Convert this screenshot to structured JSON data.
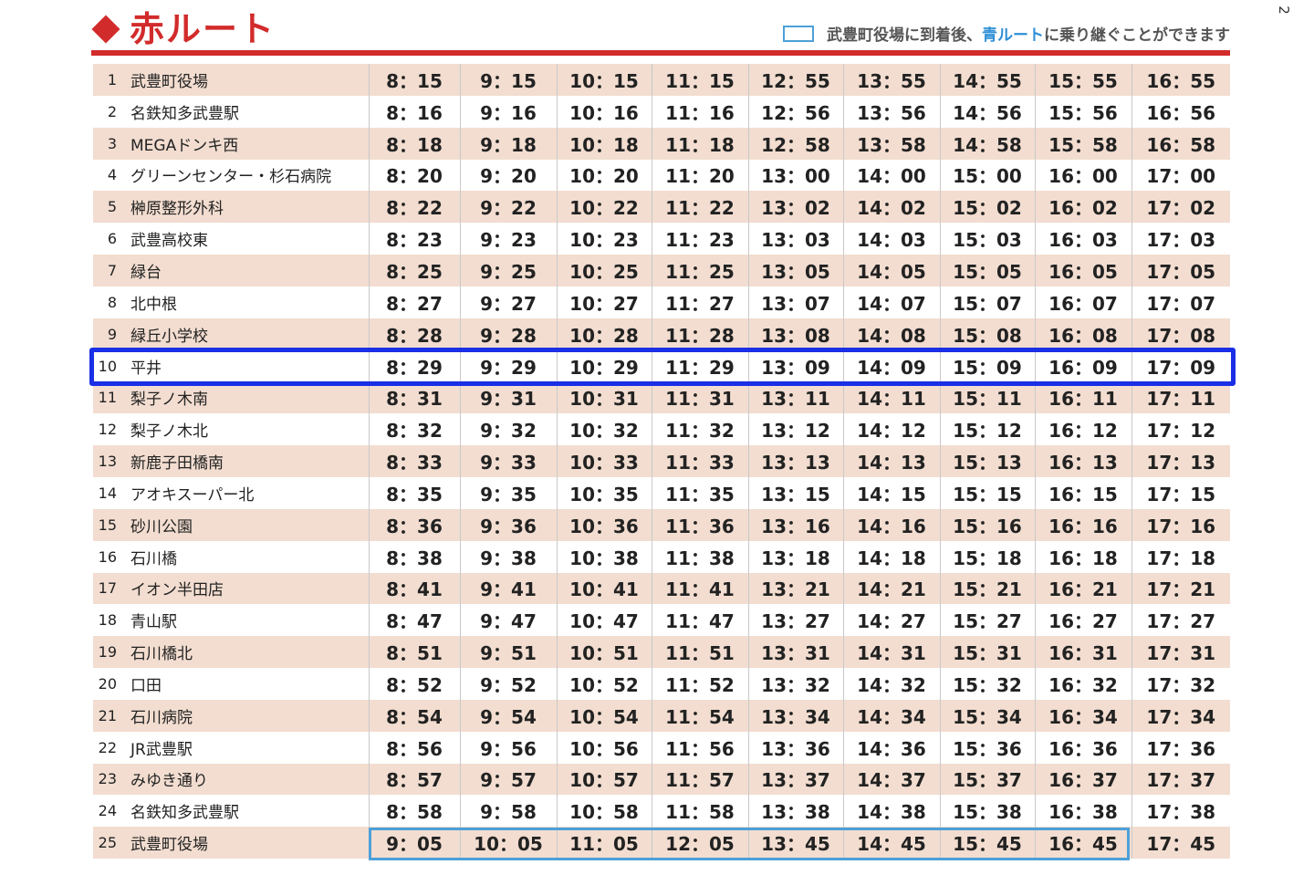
{
  "page_number": "2",
  "header": {
    "title": "赤ルート",
    "note_prefix": "武豊町役場に到着後、",
    "note_highlight": "青ルート",
    "note_suffix": "に乗り継ぐことができます"
  },
  "colors": {
    "red_accent": "#d22b2b",
    "blue_route": "#2f8fd6",
    "row_tint": "#f2ddd0",
    "highlight_outline": "#1a2fe6"
  },
  "stops": [
    {
      "num": "1",
      "name": "武豊町役場",
      "times": [
        "8：15",
        "9：15",
        "10：15",
        "11：15",
        "12：55",
        "13：55",
        "14：55",
        "15：55",
        "16：55"
      ]
    },
    {
      "num": "2",
      "name": "名鉄知多武豊駅",
      "times": [
        "8：16",
        "9：16",
        "10：16",
        "11：16",
        "12：56",
        "13：56",
        "14：56",
        "15：56",
        "16：56"
      ]
    },
    {
      "num": "3",
      "name": "MEGAドンキ西",
      "times": [
        "8：18",
        "9：18",
        "10：18",
        "11：18",
        "12：58",
        "13：58",
        "14：58",
        "15：58",
        "16：58"
      ]
    },
    {
      "num": "4",
      "name": "グリーンセンター・杉石病院",
      "times": [
        "8：20",
        "9：20",
        "10：20",
        "11：20",
        "13：00",
        "14：00",
        "15：00",
        "16：00",
        "17：00"
      ]
    },
    {
      "num": "5",
      "name": "榊原整形外科",
      "times": [
        "8：22",
        "9：22",
        "10：22",
        "11：22",
        "13：02",
        "14：02",
        "15：02",
        "16：02",
        "17：02"
      ]
    },
    {
      "num": "6",
      "name": "武豊高校東",
      "times": [
        "8：23",
        "9：23",
        "10：23",
        "11：23",
        "13：03",
        "14：03",
        "15：03",
        "16：03",
        "17：03"
      ]
    },
    {
      "num": "7",
      "name": "緑台",
      "times": [
        "8：25",
        "9：25",
        "10：25",
        "11：25",
        "13：05",
        "14：05",
        "15：05",
        "16：05",
        "17：05"
      ]
    },
    {
      "num": "8",
      "name": "北中根",
      "times": [
        "8：27",
        "9：27",
        "10：27",
        "11：27",
        "13：07",
        "14：07",
        "15：07",
        "16：07",
        "17：07"
      ]
    },
    {
      "num": "9",
      "name": "緑丘小学校",
      "times": [
        "8：28",
        "9：28",
        "10：28",
        "11：28",
        "13：08",
        "14：08",
        "15：08",
        "16：08",
        "17：08"
      ]
    },
    {
      "num": "10",
      "name": "平井",
      "times": [
        "8：29",
        "9：29",
        "10：29",
        "11：29",
        "13：09",
        "14：09",
        "15：09",
        "16：09",
        "17：09"
      ]
    },
    {
      "num": "11",
      "name": "梨子ノ木南",
      "times": [
        "8：31",
        "9：31",
        "10：31",
        "11：31",
        "13：11",
        "14：11",
        "15：11",
        "16：11",
        "17：11"
      ]
    },
    {
      "num": "12",
      "name": "梨子ノ木北",
      "times": [
        "8：32",
        "9：32",
        "10：32",
        "11：32",
        "13：12",
        "14：12",
        "15：12",
        "16：12",
        "17：12"
      ]
    },
    {
      "num": "13",
      "name": "新鹿子田橋南",
      "times": [
        "8：33",
        "9：33",
        "10：33",
        "11：33",
        "13：13",
        "14：13",
        "15：13",
        "16：13",
        "17：13"
      ]
    },
    {
      "num": "14",
      "name": "アオキスーパー北",
      "times": [
        "8：35",
        "9：35",
        "10：35",
        "11：35",
        "13：15",
        "14：15",
        "15：15",
        "16：15",
        "17：15"
      ]
    },
    {
      "num": "15",
      "name": "砂川公園",
      "times": [
        "8：36",
        "9：36",
        "10：36",
        "11：36",
        "13：16",
        "14：16",
        "15：16",
        "16：16",
        "17：16"
      ]
    },
    {
      "num": "16",
      "name": "石川橋",
      "times": [
        "8：38",
        "9：38",
        "10：38",
        "11：38",
        "13：18",
        "14：18",
        "15：18",
        "16：18",
        "17：18"
      ]
    },
    {
      "num": "17",
      "name": "イオン半田店",
      "times": [
        "8：41",
        "9：41",
        "10：41",
        "11：41",
        "13：21",
        "14：21",
        "15：21",
        "16：21",
        "17：21"
      ]
    },
    {
      "num": "18",
      "name": "青山駅",
      "times": [
        "8：47",
        "9：47",
        "10：47",
        "11：47",
        "13：27",
        "14：27",
        "15：27",
        "16：27",
        "17：27"
      ]
    },
    {
      "num": "19",
      "name": "石川橋北",
      "times": [
        "8：51",
        "9：51",
        "10：51",
        "11：51",
        "13：31",
        "14：31",
        "15：31",
        "16：31",
        "17：31"
      ]
    },
    {
      "num": "20",
      "name": "口田",
      "times": [
        "8：52",
        "9：52",
        "10：52",
        "11：52",
        "13：32",
        "14：32",
        "15：32",
        "16：32",
        "17：32"
      ]
    },
    {
      "num": "21",
      "name": "石川病院",
      "times": [
        "8：54",
        "9：54",
        "10：54",
        "11：54",
        "13：34",
        "14：34",
        "15：34",
        "16：34",
        "17：34"
      ]
    },
    {
      "num": "22",
      "name": "JR武豊駅",
      "times": [
        "8：56",
        "9：56",
        "10：56",
        "11：56",
        "13：36",
        "14：36",
        "15：36",
        "16：36",
        "17：36"
      ]
    },
    {
      "num": "23",
      "name": "みゆき通り",
      "times": [
        "8：57",
        "9：57",
        "10：57",
        "11：57",
        "13：37",
        "14：37",
        "15：37",
        "16：37",
        "17：37"
      ]
    },
    {
      "num": "24",
      "name": "名鉄知多武豊駅",
      "times": [
        "8：58",
        "9：58",
        "10：58",
        "11：58",
        "13：38",
        "14：38",
        "15：38",
        "16：38",
        "17：38"
      ]
    },
    {
      "num": "25",
      "name": "武豊町役場",
      "times": [
        "9：05",
        "10：05",
        "11：05",
        "12：05",
        "13：45",
        "14：45",
        "15：45",
        "16：45",
        "17：45"
      ]
    }
  ]
}
